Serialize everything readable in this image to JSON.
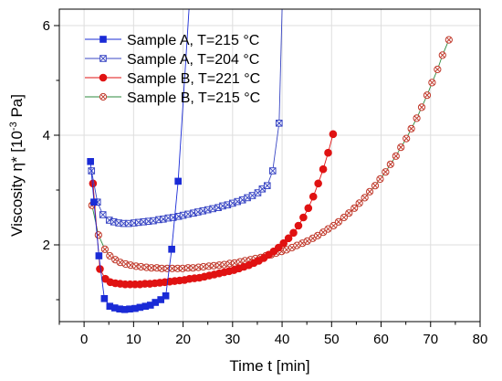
{
  "chart_data": {
    "type": "line",
    "title": "",
    "xlabel": "Time t [min]",
    "ylabel": "Viscosity η* [10",
    "ylabel_exp": "-3",
    "ylabel_unit": " Pa]",
    "xlim": [
      -5,
      80
    ],
    "ylim": [
      0.6,
      6.3
    ],
    "xticks": [
      0,
      10,
      20,
      30,
      40,
      50,
      60,
      70,
      80
    ],
    "yticks": [
      2,
      4,
      6
    ],
    "grid": true,
    "legend_position": "top-left",
    "series": [
      {
        "name": "Sample A, T=215 °C",
        "color": "#1a2bd6",
        "marker": "square-filled",
        "x": [
          1.3,
          2.0,
          3.0,
          4.1,
          5.2,
          6.2,
          7.2,
          8.2,
          9.2,
          10.3,
          11.3,
          12.4,
          13.4,
          14.4,
          15.5,
          16.5,
          17.7,
          19.0
        ],
        "y": [
          3.52,
          2.78,
          1.8,
          1.02,
          0.88,
          0.85,
          0.83,
          0.82,
          0.83,
          0.84,
          0.86,
          0.88,
          0.9,
          0.95,
          1.0,
          1.07,
          1.92,
          3.16
        ],
        "tail": [
          [
            19.0,
            3.16
          ],
          [
            21.2,
            6.3
          ]
        ]
      },
      {
        "name": "Sample A, T=204 °C",
        "color": "#3a47c4",
        "marker": "square-x",
        "x": [
          1.5,
          2.7,
          3.8,
          5.1,
          6.0,
          7.0,
          8.0,
          9.0,
          10.1,
          11.0,
          12.0,
          13.0,
          14.0,
          15.1,
          16.0,
          17.0,
          18.0,
          19.1,
          20.0,
          21.0,
          22.1,
          23.0,
          24.0,
          25.0,
          26.0,
          27.1,
          28.0,
          29.0,
          30.0,
          31.0,
          32.0,
          33.0,
          34.0,
          35.1,
          36.0,
          37.0,
          38.1,
          39.4
        ],
        "y": [
          3.35,
          2.78,
          2.55,
          2.45,
          2.42,
          2.4,
          2.39,
          2.39,
          2.4,
          2.41,
          2.42,
          2.43,
          2.44,
          2.46,
          2.47,
          2.49,
          2.5,
          2.52,
          2.54,
          2.56,
          2.58,
          2.6,
          2.62,
          2.64,
          2.66,
          2.68,
          2.71,
          2.73,
          2.76,
          2.79,
          2.82,
          2.86,
          2.9,
          2.95,
          3.02,
          3.08,
          3.35,
          4.22
        ],
        "tail": [
          [
            39.4,
            4.22
          ],
          [
            40.0,
            6.3
          ]
        ]
      },
      {
        "name": "Sample B, T=221 °C",
        "color": "#e01212",
        "marker": "circle-filled",
        "x": [
          1.8,
          3.2,
          4.3,
          5.3,
          6.3,
          7.3,
          8.3,
          9.3,
          10.3,
          11.3,
          12.3,
          13.3,
          14.3,
          15.3,
          16.3,
          17.3,
          18.3,
          19.3,
          20.3,
          21.3,
          22.3,
          23.3,
          24.3,
          25.3,
          26.3,
          27.3,
          28.3,
          29.3,
          30.3,
          31.3,
          32.3,
          33.3,
          34.3,
          35.3,
          36.3,
          37.3,
          38.3,
          39.3,
          40.3,
          41.3,
          42.3,
          43.3,
          44.3,
          45.3,
          46.3,
          47.3,
          48.3,
          49.3,
          50.3
        ],
        "y": [
          3.12,
          1.56,
          1.38,
          1.32,
          1.3,
          1.29,
          1.28,
          1.28,
          1.28,
          1.28,
          1.29,
          1.29,
          1.3,
          1.31,
          1.32,
          1.33,
          1.34,
          1.35,
          1.36,
          1.38,
          1.39,
          1.4,
          1.42,
          1.44,
          1.46,
          1.48,
          1.5,
          1.52,
          1.54,
          1.57,
          1.6,
          1.63,
          1.67,
          1.71,
          1.76,
          1.82,
          1.88,
          1.95,
          2.03,
          2.12,
          2.22,
          2.35,
          2.5,
          2.67,
          2.88,
          3.12,
          3.38,
          3.68,
          4.02
        ]
      },
      {
        "name": "Sample B, T=215 °C",
        "color": "#c0392b",
        "line_color": "#2d8a3e",
        "marker": "circle-x",
        "x": [
          1.6,
          2.9,
          4.2,
          5.2,
          6.3,
          7.3,
          8.4,
          9.4,
          10.5,
          11.5,
          12.6,
          13.6,
          14.7,
          15.7,
          16.8,
          17.8,
          18.9,
          19.9,
          21.0,
          22.0,
          23.1,
          24.1,
          25.2,
          26.2,
          27.3,
          28.3,
          29.4,
          30.4,
          31.5,
          32.5,
          33.6,
          34.6,
          35.7,
          36.7,
          37.8,
          38.8,
          39.9,
          40.9,
          42.0,
          43.0,
          44.1,
          45.1,
          46.2,
          47.2,
          48.3,
          49.3,
          50.4,
          51.4,
          52.5,
          53.5,
          54.6,
          55.6,
          56.7,
          57.7,
          58.8,
          59.8,
          60.9,
          61.9,
          63.0,
          64.0,
          65.1,
          66.1,
          67.2,
          68.2,
          69.3,
          70.3,
          71.4,
          72.4,
          73.7
        ],
        "y": [
          2.72,
          2.18,
          1.92,
          1.8,
          1.73,
          1.68,
          1.65,
          1.63,
          1.61,
          1.6,
          1.59,
          1.58,
          1.58,
          1.57,
          1.57,
          1.57,
          1.57,
          1.57,
          1.58,
          1.58,
          1.59,
          1.6,
          1.61,
          1.62,
          1.63,
          1.64,
          1.66,
          1.67,
          1.69,
          1.71,
          1.73,
          1.75,
          1.77,
          1.8,
          1.82,
          1.85,
          1.88,
          1.91,
          1.95,
          1.99,
          2.03,
          2.07,
          2.12,
          2.17,
          2.23,
          2.29,
          2.35,
          2.42,
          2.5,
          2.58,
          2.67,
          2.76,
          2.86,
          2.97,
          3.08,
          3.2,
          3.33,
          3.47,
          3.62,
          3.78,
          3.94,
          4.12,
          4.31,
          4.51,
          4.73,
          4.96,
          5.2,
          5.46,
          5.74
        ]
      }
    ]
  }
}
